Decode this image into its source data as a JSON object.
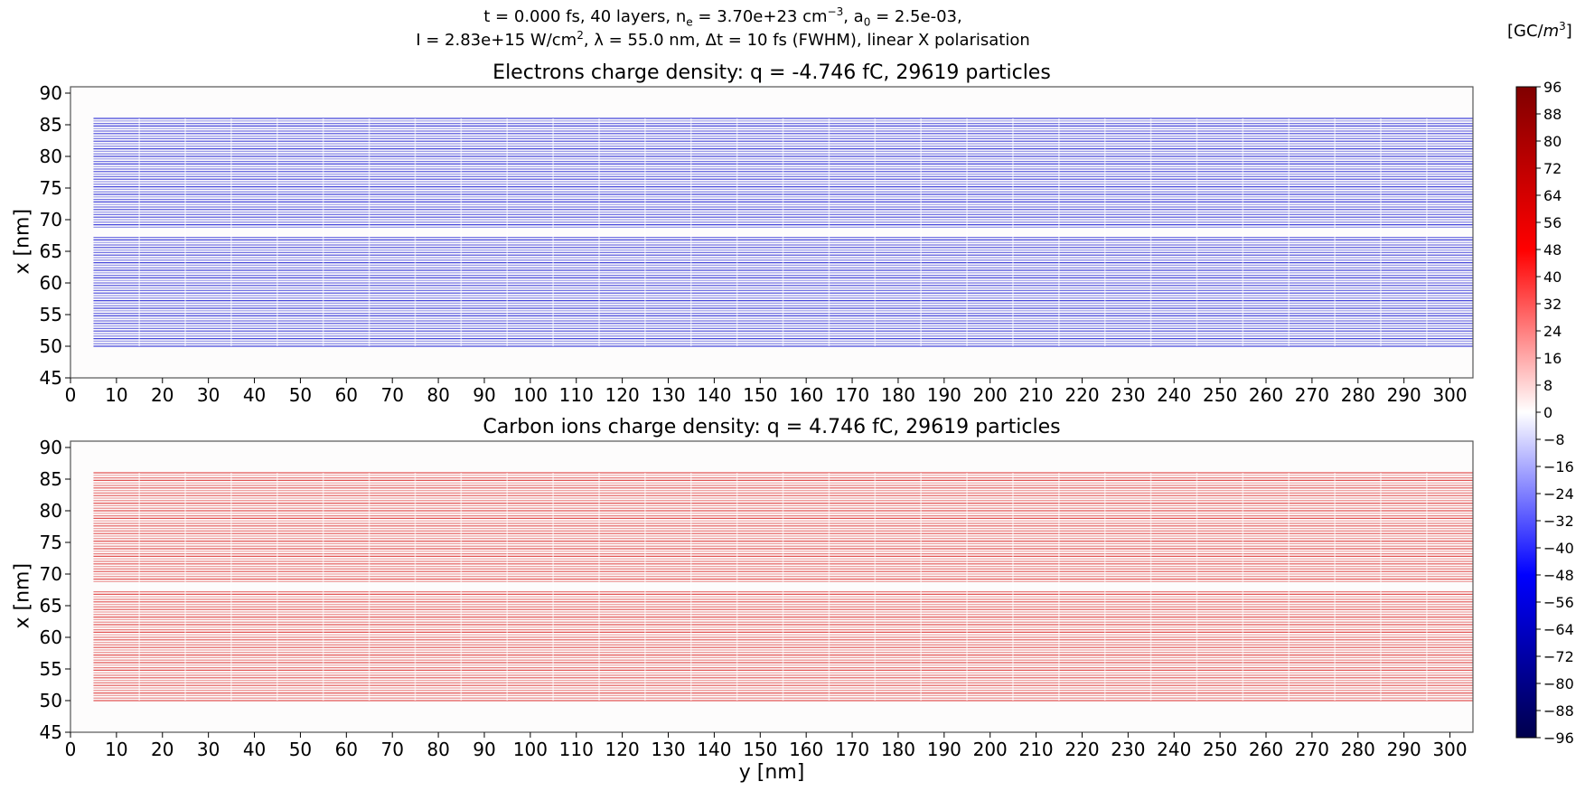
{
  "suptitle": {
    "line1": {
      "a": "t = 0.000 fs, 40 layers, n",
      "a_sub": "e",
      "b": " = 3.70e+23 cm",
      "b_sup": "−3",
      "c": ", a",
      "c_sub": "0",
      "d": " = 2.5e-03,"
    },
    "line2": {
      "a": "I = 2.83e+15 W/cm",
      "a_sup": "2",
      "b": ", λ = 55.0 nm, Δt = 10 fs (FWHM), linear X polarisation"
    }
  },
  "colorbar": {
    "label_open": "[GC/",
    "label_italic": "m",
    "label_sup": "3",
    "label_close": "]",
    "range": [
      -96,
      96
    ],
    "ticks": [
      96,
      88,
      80,
      72,
      64,
      56,
      48,
      40,
      32,
      24,
      16,
      8,
      0,
      -8,
      -16,
      -24,
      -32,
      -40,
      -48,
      -56,
      -64,
      -72,
      -80,
      -88,
      -96
    ],
    "colormap": "seismic"
  },
  "chart_data": [
    {
      "type": "heatmap",
      "title": "Electrons charge density: q = -4.746 fC, 29619 particles",
      "xlabel": "",
      "ylabel": "x [nm]",
      "xlim": [
        0,
        305
      ],
      "ylim": [
        45,
        91
      ],
      "xticks": [
        0,
        10,
        20,
        30,
        40,
        50,
        60,
        70,
        80,
        90,
        100,
        110,
        120,
        130,
        140,
        150,
        160,
        170,
        180,
        190,
        200,
        210,
        220,
        230,
        240,
        250,
        260,
        270,
        280,
        290,
        300
      ],
      "yticks": [
        45,
        50,
        55,
        60,
        65,
        70,
        75,
        80,
        85,
        90
      ],
      "layers": {
        "y_start": 5,
        "y_end": 305,
        "x_min": 50,
        "x_max": 86,
        "gap": [
          67.4,
          68.6
        ],
        "count": 40,
        "segment_nm": 10
      },
      "density_color": "#3a3ad8"
    },
    {
      "type": "heatmap",
      "title": "Carbon ions charge density: q = 4.746 fC, 29619 particles",
      "xlabel": "y [nm]",
      "ylabel": "x [nm]",
      "xlim": [
        0,
        305
      ],
      "ylim": [
        45,
        91
      ],
      "xticks": [
        0,
        10,
        20,
        30,
        40,
        50,
        60,
        70,
        80,
        90,
        100,
        110,
        120,
        130,
        140,
        150,
        160,
        170,
        180,
        190,
        200,
        210,
        220,
        230,
        240,
        250,
        260,
        270,
        280,
        290,
        300
      ],
      "yticks": [
        45,
        50,
        55,
        60,
        65,
        70,
        75,
        80,
        85,
        90
      ],
      "layers": {
        "y_start": 5,
        "y_end": 305,
        "x_min": 50,
        "x_max": 86,
        "gap": [
          67.4,
          68.6
        ],
        "count": 40,
        "segment_nm": 10
      },
      "density_color": "#e04a4a"
    }
  ]
}
